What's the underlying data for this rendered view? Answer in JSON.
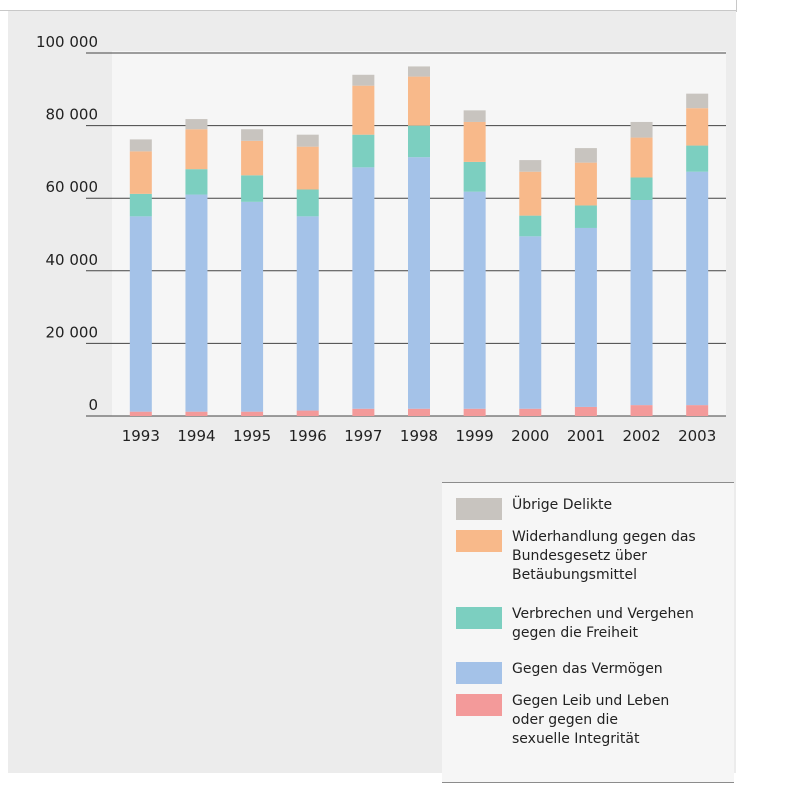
{
  "chart_data": {
    "type": "bar",
    "stacked": true,
    "categories": [
      "1993",
      "1994",
      "1995",
      "1996",
      "1997",
      "1998",
      "1999",
      "2000",
      "2001",
      "2002",
      "2003"
    ],
    "ylim": [
      0,
      100000
    ],
    "yticks": [
      0,
      20000,
      40000,
      60000,
      80000,
      100000
    ],
    "ytick_labels": [
      "0",
      "20 000",
      "40 000",
      "60 000",
      "80 000",
      "100 000"
    ],
    "grid": true,
    "legend_position": "bottom-right",
    "series": [
      {
        "name": "Gegen Leib und Leben\noder gegen die\nsexuelle Integrität",
        "color": "#f39a9a",
        "values": [
          1200,
          1200,
          1200,
          1500,
          2000,
          2000,
          2000,
          2000,
          2500,
          3000,
          3000
        ]
      },
      {
        "name": "Gegen das Vermögen",
        "color": "#a4c2e8",
        "values": [
          53800,
          59800,
          57800,
          53500,
          66500,
          69300,
          59800,
          47500,
          49300,
          56500,
          64300
        ]
      },
      {
        "name": "Verbrechen und Vergehen\ngegen die Freiheit",
        "color": "#7ccfc0",
        "values": [
          6200,
          7000,
          7300,
          7400,
          9000,
          8700,
          8200,
          5700,
          6200,
          6200,
          7200
        ]
      },
      {
        "name": "Widerhandlung gegen das\nBundesgesetz über\nBetäubungsmittel",
        "color": "#f8b98a",
        "values": [
          11700,
          11000,
          9500,
          11800,
          13500,
          13500,
          11000,
          12100,
          11800,
          11000,
          10300
        ]
      },
      {
        "name": "Übrige Delikte",
        "color": "#c8c4bf",
        "values": [
          3300,
          2800,
          3200,
          3300,
          3000,
          2800,
          3200,
          3200,
          4000,
          4300,
          4000
        ]
      }
    ]
  }
}
